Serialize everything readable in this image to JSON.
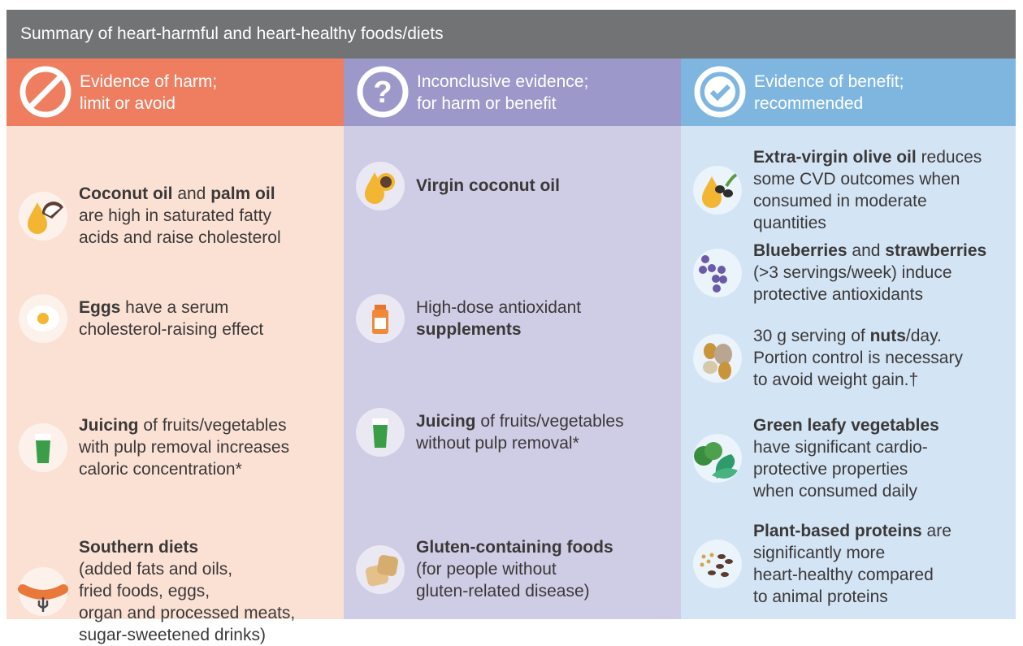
{
  "title": "Summary of heart-harmful and heart-healthy foods/diets",
  "columns": [
    {
      "key": "harm",
      "icon": "prohibited-icon",
      "header_color": "#ef7d60",
      "body_color": "#fbe1d4",
      "heading_lines": [
        "Evidence of harm;",
        "limit or avoid"
      ],
      "items": [
        {
          "icon": "coconut-oil-drop-icon",
          "lines": [
            [
              {
                "t": "Coconut oil",
                "b": true
              },
              {
                "t": " and ",
                "b": false
              },
              {
                "t": "palm oil",
                "b": true
              }
            ],
            [
              {
                "t": "are high in saturated fatty",
                "b": false
              }
            ],
            [
              {
                "t": "acids and raise cholesterol",
                "b": false
              }
            ]
          ]
        },
        {
          "icon": "fried-egg-icon",
          "lines": [
            [
              {
                "t": "Eggs",
                "b": true
              },
              {
                "t": " have a serum",
                "b": false
              }
            ],
            [
              {
                "t": "cholesterol-raising effect",
                "b": false
              }
            ]
          ]
        },
        {
          "icon": "juice-glass-icon",
          "lines": [
            [
              {
                "t": "Juicing",
                "b": true
              },
              {
                "t": " of fruits/vegetables",
                "b": false
              }
            ],
            [
              {
                "t": "with pulp removal increases",
                "b": false
              }
            ],
            [
              {
                "t": "caloric concentration*",
                "b": false
              }
            ]
          ]
        },
        {
          "icon": "sausage-fork-icon",
          "lines": [
            [
              {
                "t": "Southern diets",
                "b": true
              }
            ],
            [
              {
                "t": "(added fats and oils,",
                "b": false
              }
            ],
            [
              {
                "t": "fried foods, eggs,",
                "b": false
              }
            ],
            [
              {
                "t": "organ and processed meats,",
                "b": false
              }
            ],
            [
              {
                "t": "sugar-sweetened drinks)",
                "b": false
              }
            ]
          ]
        }
      ]
    },
    {
      "key": "inconclusive",
      "icon": "question-icon",
      "header_color": "#9c98c9",
      "body_color": "#cfcce5",
      "heading_lines": [
        "Inconclusive evidence;",
        "for harm or benefit"
      ],
      "items": [
        {
          "icon": "sunflower-oil-drop-icon",
          "lines": [
            [
              {
                "t": "Virgin coconut oil",
                "b": true
              }
            ]
          ]
        },
        {
          "icon": "supplement-bottle-icon",
          "lines": [
            [
              {
                "t": "High-dose antioxidant",
                "b": false
              }
            ],
            [
              {
                "t": "supplements",
                "b": true
              }
            ]
          ]
        },
        {
          "icon": "juice-glass-icon",
          "lines": [
            [
              {
                "t": "Juicing",
                "b": true
              },
              {
                "t": " of fruits/vegetables",
                "b": false
              }
            ],
            [
              {
                "t": "without pulp removal*",
                "b": false
              }
            ]
          ]
        },
        {
          "icon": "bread-icon",
          "lines": [
            [
              {
                "t": "Gluten-containing foods",
                "b": true
              }
            ],
            [
              {
                "t": "(for people without",
                "b": false
              }
            ],
            [
              {
                "t": "gluten-related disease)",
                "b": false
              }
            ]
          ]
        }
      ]
    },
    {
      "key": "benefit",
      "icon": "checkmark-icon",
      "header_color": "#7fb6e0",
      "body_color": "#d3e4f5",
      "heading_lines": [
        "Evidence of benefit;",
        "recommended"
      ],
      "items": [
        {
          "icon": "olive-oil-drop-icon",
          "lines": [
            [
              {
                "t": "Extra-virgin olive oil",
                "b": true
              },
              {
                "t": " reduces",
                "b": false
              }
            ],
            [
              {
                "t": "some CVD outcomes when",
                "b": false
              }
            ],
            [
              {
                "t": "consumed in moderate",
                "b": false
              }
            ],
            [
              {
                "t": "quantities",
                "b": false
              }
            ]
          ]
        },
        {
          "icon": "berries-icon",
          "lines": [
            [
              {
                "t": "Blueberries",
                "b": true
              },
              {
                "t": " and ",
                "b": false
              },
              {
                "t": "strawberries",
                "b": true
              }
            ],
            [
              {
                "t": "(>3 servings/week) induce",
                "b": false
              }
            ],
            [
              {
                "t": "protective antioxidants",
                "b": false
              }
            ]
          ]
        },
        {
          "icon": "nuts-icon",
          "lines": [
            [
              {
                "t": "30 g serving of ",
                "b": false
              },
              {
                "t": "nuts",
                "b": true
              },
              {
                "t": "/day.",
                "b": false
              }
            ],
            [
              {
                "t": "Portion control is necessary",
                "b": false
              }
            ],
            [
              {
                "t": "to avoid weight gain.†",
                "b": false
              }
            ]
          ]
        },
        {
          "icon": "leafy-greens-icon",
          "lines": [
            [
              {
                "t": "Green leafy vegetables",
                "b": true
              }
            ],
            [
              {
                "t": "have significant cardio-",
                "b": false
              }
            ],
            [
              {
                "t": "protective properties",
                "b": false
              }
            ],
            [
              {
                "t": "when consumed daily",
                "b": false
              }
            ]
          ]
        },
        {
          "icon": "legumes-icon",
          "lines": [
            [
              {
                "t": "Plant-based proteins",
                "b": true
              },
              {
                "t": " are",
                "b": false
              }
            ],
            [
              {
                "t": "significantly more",
                "b": false
              }
            ],
            [
              {
                "t": "heart-healthy compared",
                "b": false
              }
            ],
            [
              {
                "t": "to animal proteins",
                "b": false
              }
            ]
          ]
        }
      ]
    }
  ]
}
